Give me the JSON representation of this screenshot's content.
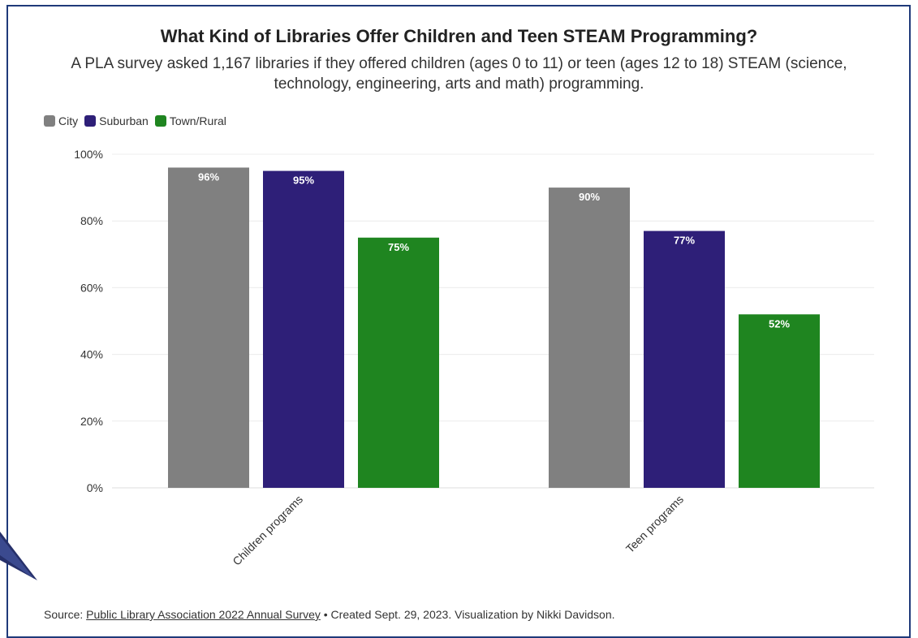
{
  "chart_data": {
    "type": "bar",
    "title": "What Kind of Libraries Offer Children and Teen STEAM Programming?",
    "subtitle": "A PLA survey asked 1,167 libraries if they offered children (ages 0 to 11) or teen (ages 12 to 18) STEAM (science, technology, engineering, arts and math) programming.",
    "categories": [
      "Children programs",
      "Teen programs"
    ],
    "series": [
      {
        "name": "City",
        "color": "#808080",
        "values": [
          96,
          90
        ]
      },
      {
        "name": "Suburban",
        "color": "#2e1f78",
        "values": [
          95,
          77
        ]
      },
      {
        "name": "Town/Rural",
        "color": "#1f8520",
        "values": [
          75,
          52
        ]
      }
    ],
    "value_labels": [
      [
        "96%",
        "90%"
      ],
      [
        "95%",
        "77%"
      ],
      [
        "75%",
        "52%"
      ]
    ],
    "ylim": [
      0,
      100
    ],
    "yticks": [
      "0%",
      "20%",
      "40%",
      "60%",
      "80%",
      "100%"
    ],
    "xlabel": "",
    "ylabel": "",
    "grid": true,
    "legend_position": "top-left"
  },
  "source": {
    "prefix": "Source: ",
    "link_text": "Public Library Association 2022 Annual Survey",
    "suffix": " • Created Sept. 29, 2023. Visualization by Nikki Davidson."
  }
}
